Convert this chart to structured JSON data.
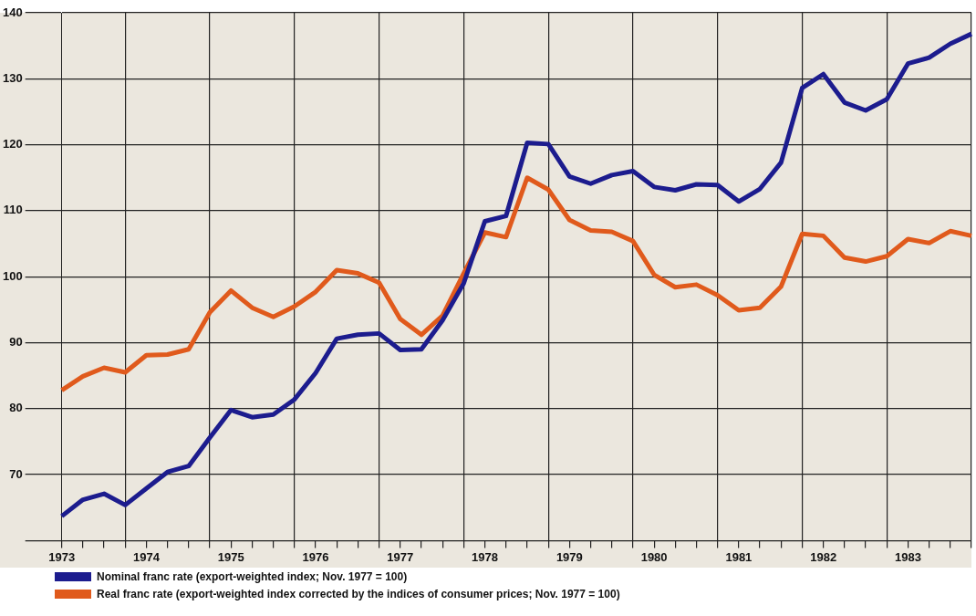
{
  "chart_data": {
    "type": "line",
    "categories": [
      "1973",
      null,
      null,
      null,
      "1974",
      null,
      null,
      null,
      "1975",
      null,
      null,
      null,
      "1976",
      null,
      null,
      null,
      "1977",
      null,
      null,
      null,
      "1978",
      null,
      null,
      null,
      "1979",
      null,
      null,
      null,
      "1980",
      null,
      null,
      null,
      "1981",
      null,
      null,
      null,
      "1982",
      null,
      null,
      null,
      "1983",
      null,
      null,
      null
    ],
    "series": [
      {
        "name": "Nominal franc rate (export-weighted index; Nov. 1977 = 100)",
        "color": "#1c1c8e",
        "values": [
          63.7,
          66.2,
          67.1,
          65.4,
          67.9,
          70.4,
          71.3,
          75.6,
          79.8,
          78.7,
          79.1,
          81.4,
          85.4,
          90.6,
          91.2,
          91.4,
          88.9,
          89.0,
          93.4,
          99.0,
          108.4,
          109.2,
          120.3,
          120.1,
          115.2,
          114.1,
          115.4,
          116.0,
          113.6,
          113.1,
          114.0,
          113.9,
          111.4,
          113.3,
          117.3,
          128.6,
          130.7,
          126.4,
          125.2,
          126.9,
          132.3,
          133.2,
          135.3,
          136.8
        ]
      },
      {
        "name": "Real franc rate (export-weighted index corrected by the indices of consumer prices; Nov. 1977 = 100)",
        "color": "#e05a1c",
        "values": [
          82.8,
          84.9,
          86.2,
          85.5,
          88.1,
          88.2,
          89.0,
          94.6,
          97.9,
          95.3,
          93.9,
          95.5,
          97.7,
          101.0,
          100.5,
          99.1,
          93.6,
          91.2,
          94.1,
          100.5,
          106.7,
          106.0,
          115.0,
          113.2,
          108.6,
          107.0,
          106.8,
          105.4,
          100.3,
          98.4,
          98.8,
          97.2,
          94.9,
          95.3,
          98.5,
          106.5,
          106.2,
          102.9,
          102.3,
          103.1,
          105.7,
          105.1,
          106.9,
          106.2
        ]
      }
    ],
    "ylim": [
      60,
      140
    ],
    "yticks": [
      {
        "value": 60,
        "label": null
      },
      70,
      80,
      90,
      100,
      110,
      120,
      130,
      140
    ],
    "grid": true,
    "legend": "bottom",
    "marker": "none",
    "line_style": "solid"
  }
}
